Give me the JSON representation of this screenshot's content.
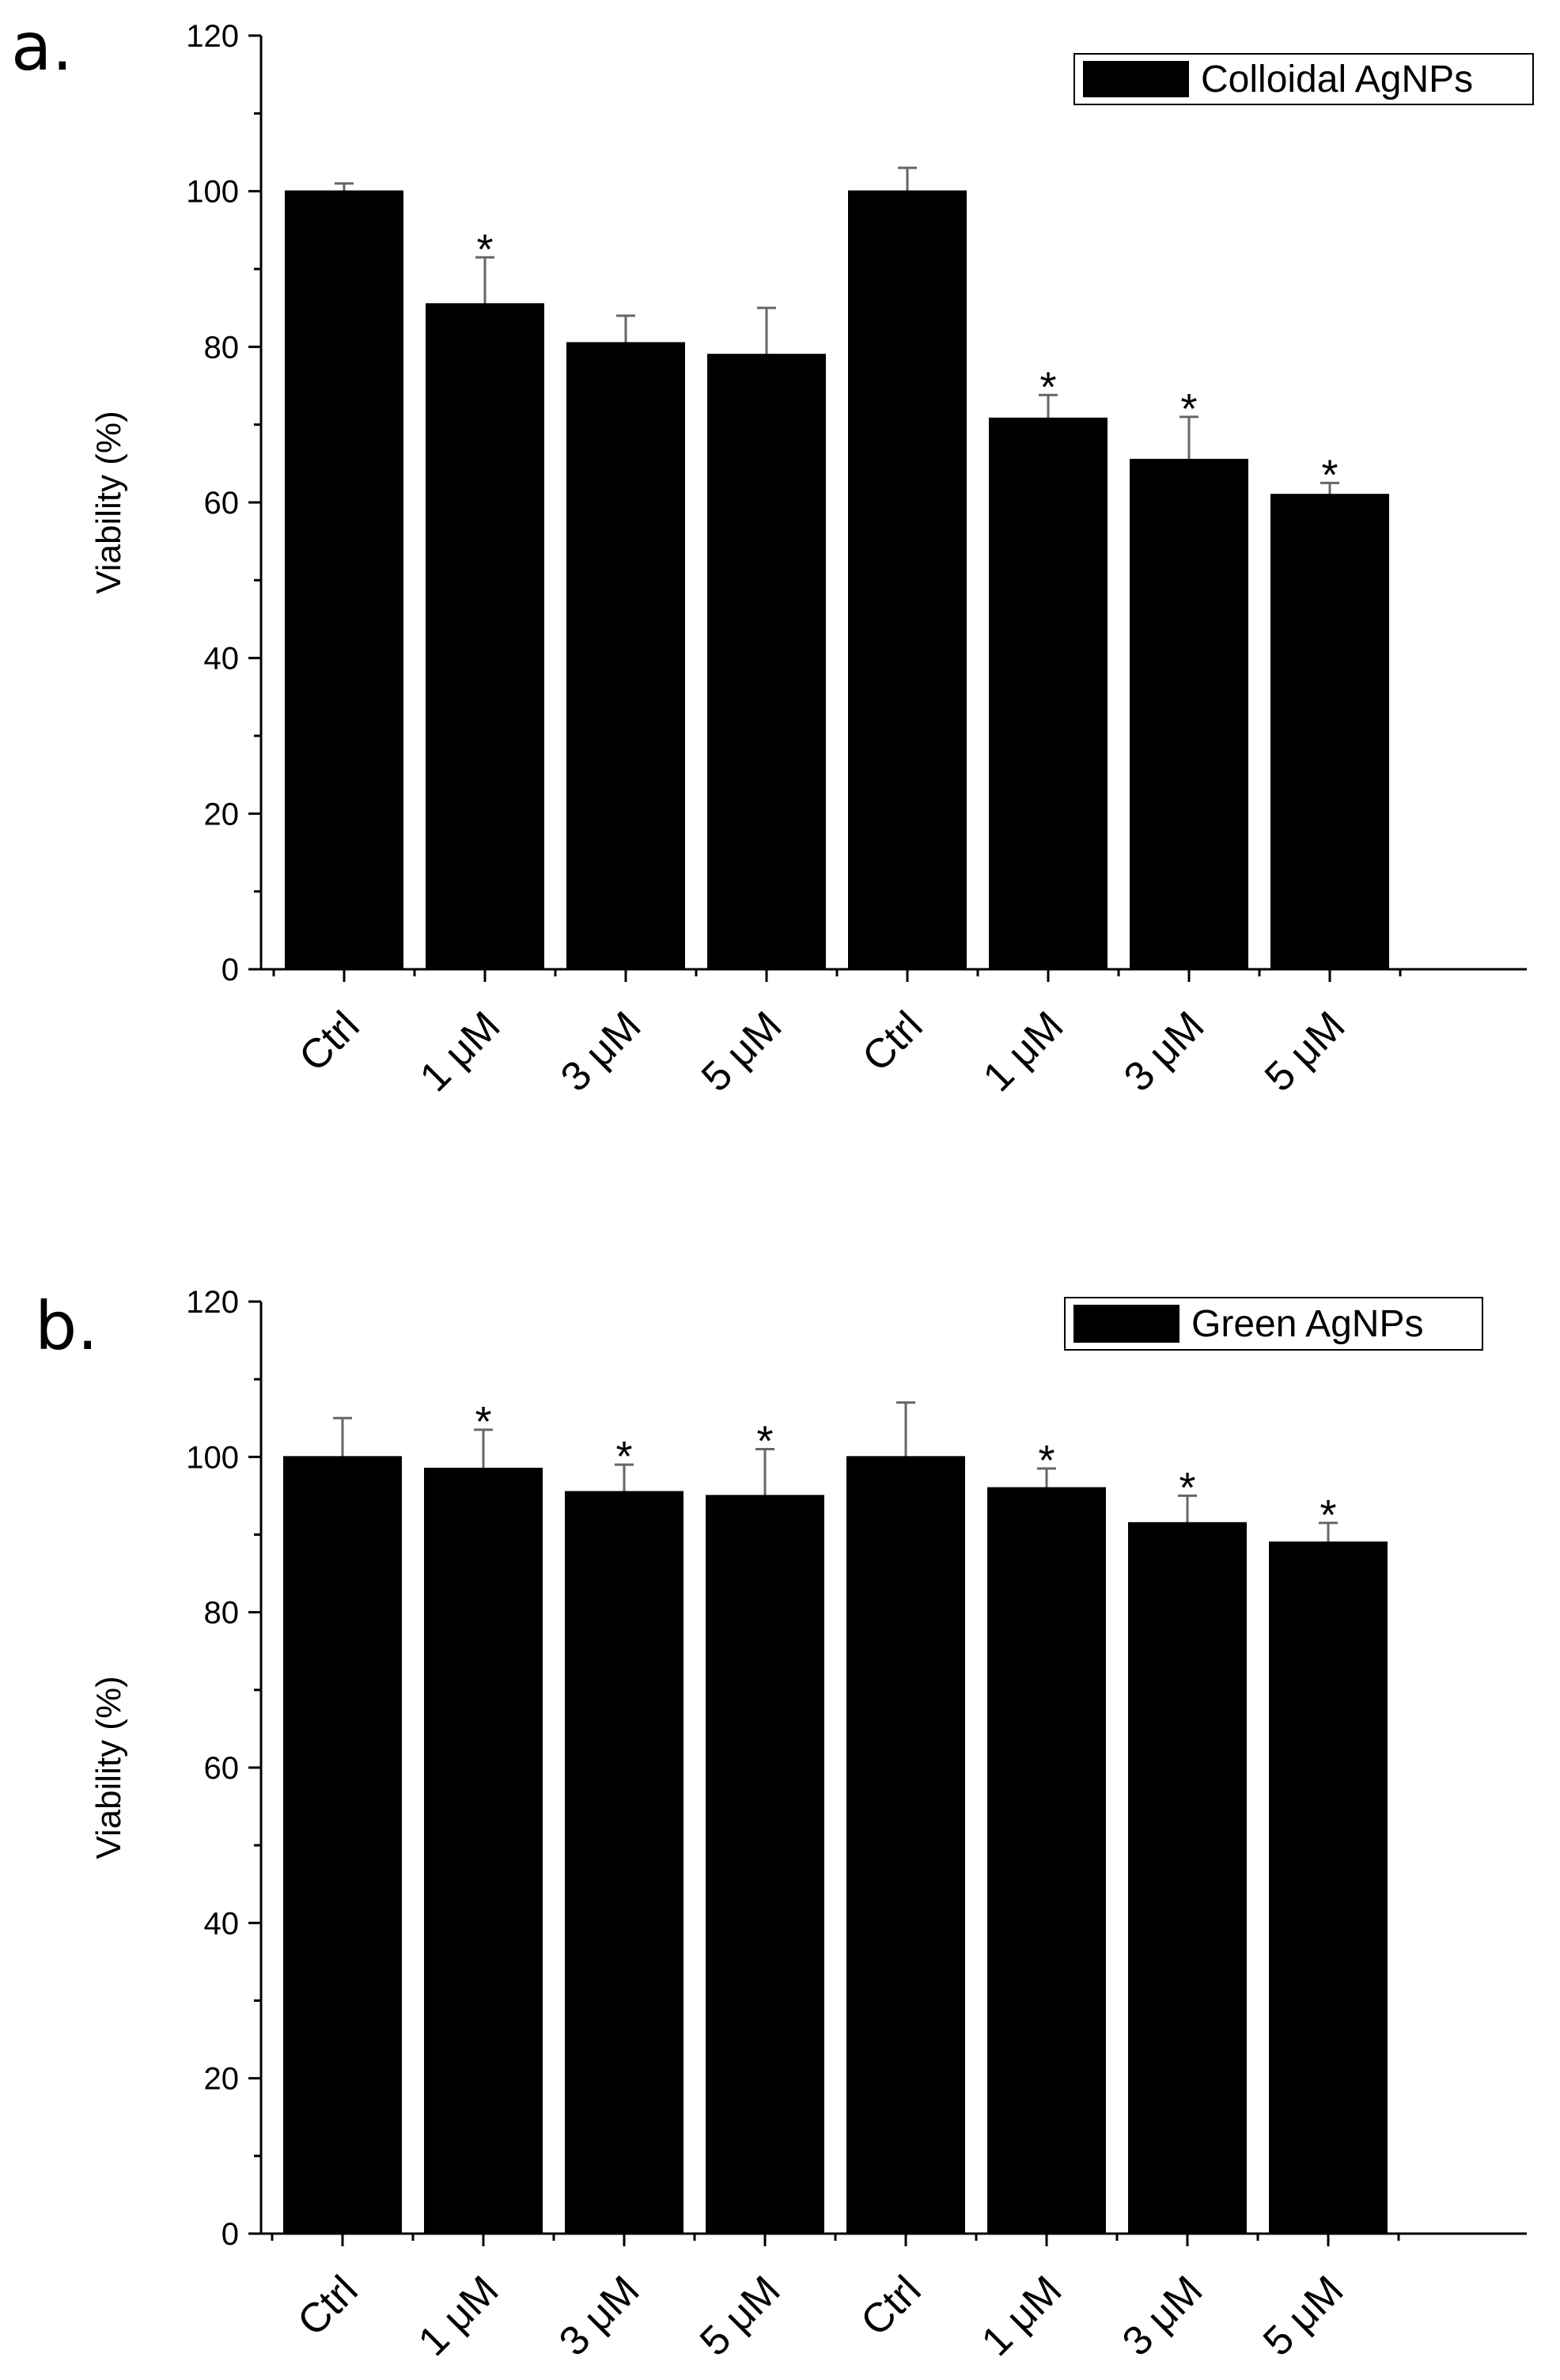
{
  "chart_data": [
    {
      "panel_label": "a.",
      "type": "bar",
      "categories": [
        "Ctrl",
        "1 μM",
        "3 μM",
        "5 μM",
        "Ctrl",
        "1 μM",
        "3 μM",
        "5 μM"
      ],
      "values": [
        100,
        85.5,
        80.5,
        79,
        100,
        70.8,
        65.5,
        61
      ],
      "errors": [
        1,
        6,
        3.5,
        6,
        3,
        3,
        5.5,
        1.5
      ],
      "significant": [
        false,
        true,
        false,
        false,
        false,
        true,
        true,
        true
      ],
      "significance_marker": "*",
      "series_name": "Colloidal AgNPs",
      "ylabel": "Viability (%)",
      "xlabel": "",
      "ylim": [
        0,
        120
      ],
      "yticks": [
        0,
        20,
        40,
        60,
        80,
        100,
        120
      ],
      "legend_position": "top-right",
      "color": "#000000"
    },
    {
      "panel_label": "b.",
      "type": "bar",
      "categories": [
        "Ctrl",
        "1 μM",
        "3 μM",
        "5 μM",
        "Ctrl",
        "1 μM",
        "3 μM",
        "5 μM"
      ],
      "values": [
        100,
        98.5,
        95.5,
        95,
        100,
        96,
        91.5,
        89
      ],
      "errors": [
        5,
        5,
        3.5,
        6,
        7,
        2.5,
        3.5,
        2.5
      ],
      "significant": [
        false,
        true,
        true,
        true,
        false,
        true,
        true,
        true
      ],
      "significance_marker": "*",
      "series_name": "Green AgNPs",
      "ylabel": "Viability (%)",
      "xlabel": "",
      "ylim": [
        0,
        120
      ],
      "yticks": [
        0,
        20,
        40,
        60,
        80,
        100,
        120
      ],
      "legend_position": "top-right",
      "color": "#000000"
    }
  ]
}
